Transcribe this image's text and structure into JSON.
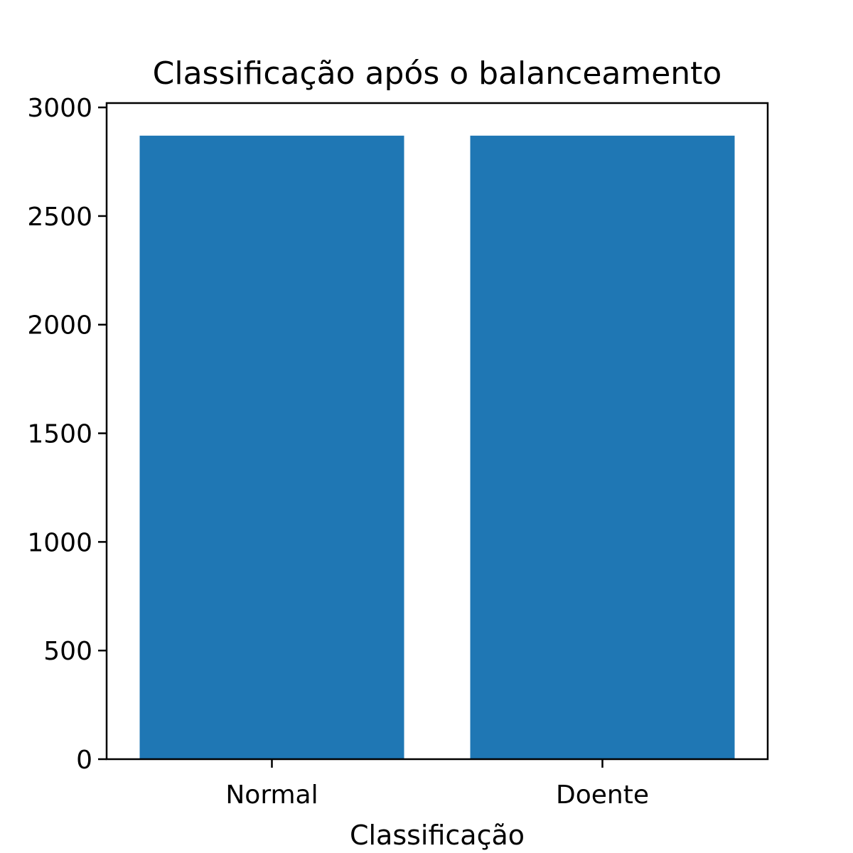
{
  "chart_data": {
    "type": "bar",
    "title": "Classificação após o balanceamento",
    "xlabel": "Classificação",
    "ylabel": "",
    "categories": [
      "Normal",
      "Doente"
    ],
    "values": [
      2870,
      2870
    ],
    "ylim": [
      0,
      3020
    ],
    "yticks": [
      0,
      500,
      1000,
      1500,
      2000,
      2500,
      3000
    ],
    "bar_color": "#1f77b4",
    "grid": false,
    "legend": "none"
  }
}
